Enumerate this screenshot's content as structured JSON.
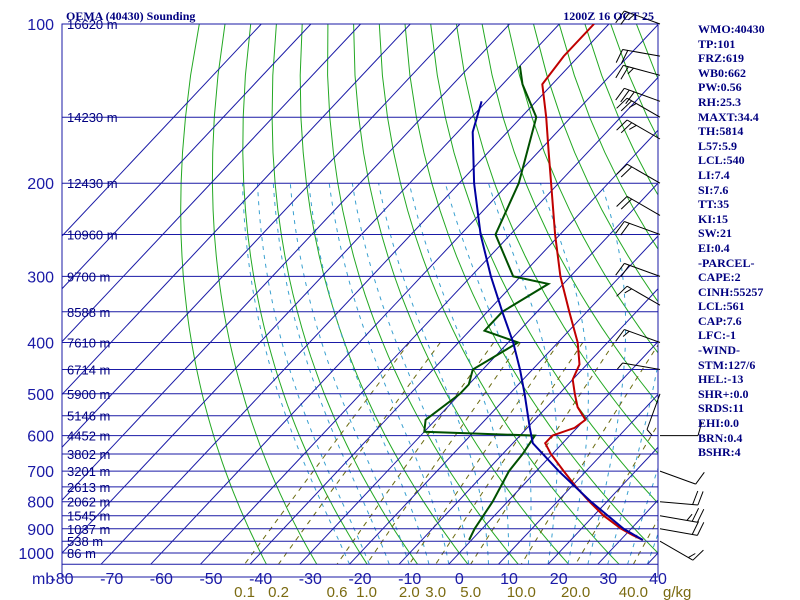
{
  "chart_data": {
    "type": "skew-t",
    "title_left": "OEMA (40430) Sounding",
    "title_right": "1200Z 16 OCT 25",
    "xlabel_unit": "mb",
    "mixing_ratio_unit": "g/kg",
    "pressure_ticks": [
      100,
      200,
      300,
      400,
      500,
      600,
      700,
      800,
      900,
      1000
    ],
    "temperature_ticks": [
      -80,
      -70,
      -60,
      -50,
      -40,
      -30,
      -20,
      -10,
      0,
      10,
      20,
      30,
      40
    ],
    "temperature_tick_labels": [
      "-80",
      "-70",
      "-60",
      "-50",
      "-40",
      "-30",
      "-20",
      "-10",
      "0",
      "10",
      "20",
      "30",
      "40"
    ],
    "xlim": [
      -80,
      40
    ],
    "ylim": [
      100,
      1050
    ],
    "height_labels": [
      {
        "p": 100,
        "label": "16620 m"
      },
      {
        "p": 150,
        "label": "14230 m"
      },
      {
        "p": 200,
        "label": "12430 m"
      },
      {
        "p": 250,
        "label": "10960 m"
      },
      {
        "p": 300,
        "label": "9700 m"
      },
      {
        "p": 350,
        "label": "8588 m"
      },
      {
        "p": 400,
        "label": "7610 m"
      },
      {
        "p": 450,
        "label": "6714 m"
      },
      {
        "p": 500,
        "label": "5900 m"
      },
      {
        "p": 550,
        "label": "5146 m"
      },
      {
        "p": 600,
        "label": "4452 m"
      },
      {
        "p": 650,
        "label": "3802 m"
      },
      {
        "p": 700,
        "label": "3201 m"
      },
      {
        "p": 750,
        "label": "2613 m"
      },
      {
        "p": 800,
        "label": "2062 m"
      },
      {
        "p": 850,
        "label": "1545 m"
      },
      {
        "p": 900,
        "label": "1037 m"
      },
      {
        "p": 950,
        "label": "538 m"
      },
      {
        "p": 1000,
        "label": "86 m"
      }
    ],
    "mixing_ratio_lines": [
      {
        "w": 0.1,
        "label": "0.1"
      },
      {
        "w": 0.2,
        "label": "0.2"
      },
      {
        "w": 0.6,
        "label": "0.6"
      },
      {
        "w": 1.0,
        "label": "1.0"
      },
      {
        "w": 2.0,
        "label": "2.0"
      },
      {
        "w": 3.0,
        "label": "3.0"
      },
      {
        "w": 5.0,
        "label": "5.0"
      },
      {
        "w": 10.0,
        "label": "10.0"
      },
      {
        "w": 20.0,
        "label": "20.0"
      },
      {
        "w": 40.0,
        "label": "40.0"
      }
    ],
    "series": [
      {
        "name": "Temperature",
        "color": "#c00000",
        "points": [
          [
            945,
            34.5
          ],
          [
            925,
            31.5
          ],
          [
            900,
            28.0
          ],
          [
            850,
            22.0
          ],
          [
            800,
            16.5
          ],
          [
            750,
            11.0
          ],
          [
            700,
            5.5
          ],
          [
            650,
            -0.3
          ],
          [
            620,
            -3.5
          ],
          [
            600,
            -3.5
          ],
          [
            580,
            -0.5
          ],
          [
            560,
            0.2
          ],
          [
            530,
            -3.8
          ],
          [
            500,
            -6.9
          ],
          [
            470,
            -10.0
          ],
          [
            440,
            -11.5
          ],
          [
            400,
            -16.0
          ],
          [
            350,
            -23.5
          ],
          [
            300,
            -32.0
          ],
          [
            250,
            -41.0
          ],
          [
            200,
            -51.5
          ],
          [
            175,
            -57.8
          ],
          [
            150,
            -65.0
          ],
          [
            130,
            -72.0
          ],
          [
            115,
            -73.0
          ],
          [
            100,
            -73.0
          ]
        ]
      },
      {
        "name": "Dewpoint",
        "color": "#005000",
        "points": [
          [
            945,
            -0.5
          ],
          [
            900,
            -1.5
          ],
          [
            800,
            -3.0
          ],
          [
            700,
            -5.5
          ],
          [
            650,
            -6.0
          ],
          [
            600,
            -7.0
          ],
          [
            590,
            -30.0
          ],
          [
            560,
            -32.0
          ],
          [
            500,
            -30.0
          ],
          [
            480,
            -30.0
          ],
          [
            450,
            -32.0
          ],
          [
            400,
            -28.0
          ],
          [
            380,
            -37.0
          ],
          [
            350,
            -37.0
          ],
          [
            310,
            -33.0
          ],
          [
            300,
            -41.5
          ],
          [
            250,
            -53.0
          ],
          [
            200,
            -58.0
          ],
          [
            150,
            -67.0
          ],
          [
            130,
            -76.0
          ],
          [
            120,
            -80.0
          ]
        ]
      },
      {
        "name": "Parcel",
        "color": "#0000a0",
        "points": [
          [
            945,
            34.5
          ],
          [
            900,
            28.5
          ],
          [
            800,
            16.8
          ],
          [
            700,
            4.5
          ],
          [
            620,
            -6.0
          ],
          [
            580,
            -9.5
          ],
          [
            500,
            -17.0
          ],
          [
            450,
            -22.5
          ],
          [
            400,
            -29.0
          ],
          [
            350,
            -37.0
          ],
          [
            300,
            -46.0
          ],
          [
            250,
            -56.0
          ],
          [
            200,
            -67.0
          ],
          [
            160,
            -77.0
          ],
          [
            140,
            -81.0
          ]
        ]
      }
    ],
    "wind_barbs": [
      {
        "p": 100,
        "dir": 290,
        "spd": 25
      },
      {
        "p": 115,
        "dir": 280,
        "spd": 20
      },
      {
        "p": 125,
        "dir": 285,
        "spd": 25
      },
      {
        "p": 140,
        "dir": 290,
        "spd": 30
      },
      {
        "p": 150,
        "dir": 300,
        "spd": 25
      },
      {
        "p": 165,
        "dir": 300,
        "spd": 25
      },
      {
        "p": 200,
        "dir": 300,
        "spd": 20
      },
      {
        "p": 230,
        "dir": 300,
        "spd": 20
      },
      {
        "p": 250,
        "dir": 290,
        "spd": 20
      },
      {
        "p": 300,
        "dir": 290,
        "spd": 20
      },
      {
        "p": 340,
        "dir": 300,
        "spd": 15
      },
      {
        "p": 400,
        "dir": 290,
        "spd": 15
      },
      {
        "p": 450,
        "dir": 280,
        "spd": 5
      },
      {
        "p": 500,
        "dir": 200,
        "spd": 5
      },
      {
        "p": 600,
        "dir": 90,
        "spd": 10
      },
      {
        "p": 700,
        "dir": 110,
        "spd": 10
      },
      {
        "p": 800,
        "dir": 95,
        "spd": 20
      },
      {
        "p": 850,
        "dir": 100,
        "spd": 25
      },
      {
        "p": 900,
        "dir": 100,
        "spd": 20
      },
      {
        "p": 950,
        "dir": 120,
        "spd": 15
      }
    ],
    "indices": [
      {
        "key": "wmo",
        "label": "WMO:40430"
      },
      {
        "key": "tp",
        "label": "TP:101"
      },
      {
        "key": "frz",
        "label": "FRZ:619"
      },
      {
        "key": "wb0",
        "label": "WB0:662"
      },
      {
        "key": "pw",
        "label": "PW:0.56"
      },
      {
        "key": "rh",
        "label": "RH:25.3"
      },
      {
        "key": "maxt",
        "label": "MAXT:34.4"
      },
      {
        "key": "th",
        "label": "TH:5814"
      },
      {
        "key": "l57",
        "label": "L57:5.9"
      },
      {
        "key": "lcl",
        "label": "LCL:540"
      },
      {
        "key": "li",
        "label": "LI:7.4"
      },
      {
        "key": "si",
        "label": "SI:7.6"
      },
      {
        "key": "tt",
        "label": "TT:35"
      },
      {
        "key": "ki",
        "label": "KI:15"
      },
      {
        "key": "sw",
        "label": "SW:21"
      },
      {
        "key": "ei",
        "label": "EI:0.4"
      },
      {
        "key": "parcel-header",
        "label": "-PARCEL-"
      },
      {
        "key": "cape",
        "label": "CAPE:2"
      },
      {
        "key": "cinh",
        "label": "CINH:55257"
      },
      {
        "key": "parcel-lcl",
        "label": "LCL:561"
      },
      {
        "key": "cap",
        "label": "CAP:7.6"
      },
      {
        "key": "lfc",
        "label": "LFC:-1"
      },
      {
        "key": "wind-header",
        "label": "-WIND-"
      },
      {
        "key": "stm",
        "label": "STM:127/6"
      },
      {
        "key": "hel",
        "label": "HEL:-13"
      },
      {
        "key": "shr",
        "label": "SHR+:0.0"
      },
      {
        "key": "srds",
        "label": "SRDS:11"
      },
      {
        "key": "ehi",
        "label": "EHI:0.0"
      },
      {
        "key": "brn",
        "label": "BRN:0.4"
      },
      {
        "key": "bshr",
        "label": "BSHR:4"
      }
    ],
    "colors": {
      "grid": "#1a1aa6",
      "dry_adiabat": "#23a823",
      "moist_adiabat": "#3aa0d0",
      "mixing_ratio": "#6a6a10",
      "text": "#000080"
    }
  }
}
